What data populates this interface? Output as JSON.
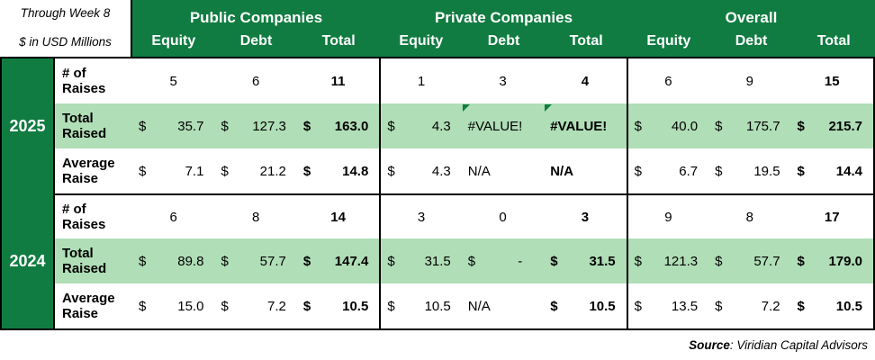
{
  "meta": {
    "through": "Through Week 8",
    "units": "$ in USD Millions"
  },
  "header": {
    "groups": [
      {
        "title": "Public Companies"
      },
      {
        "title": "Private Companies"
      },
      {
        "title": "Overall"
      }
    ],
    "cols": [
      "Equity",
      "Debt",
      "Total"
    ]
  },
  "body": {
    "years": [
      "2025",
      "2024"
    ],
    "rows": [
      {
        "label": "# of Raises",
        "cells": [
          {
            "v": "5"
          },
          {
            "v": "6"
          },
          {
            "v": "11"
          },
          {
            "v": "1"
          },
          {
            "v": "3"
          },
          {
            "v": "4"
          },
          {
            "v": "6"
          },
          {
            "v": "9"
          },
          {
            "v": "15"
          }
        ]
      },
      {
        "label": "Total Raised",
        "cells": [
          {
            "c": "$",
            "v": "35.7"
          },
          {
            "c": "$",
            "v": "127.3"
          },
          {
            "c": "$",
            "v": "163.0"
          },
          {
            "c": "$",
            "v": "4.3"
          },
          {
            "v": "#VALUE!"
          },
          {
            "v": "#VALUE!"
          },
          {
            "c": "$",
            "v": "40.0"
          },
          {
            "c": "$",
            "v": "175.7"
          },
          {
            "c": "$",
            "v": "215.7"
          }
        ]
      },
      {
        "label": "Average Raise",
        "cells": [
          {
            "c": "$",
            "v": "7.1"
          },
          {
            "c": "$",
            "v": "21.2"
          },
          {
            "c": "$",
            "v": "14.8"
          },
          {
            "c": "$",
            "v": "4.3"
          },
          {
            "v": "N/A"
          },
          {
            "v": "N/A"
          },
          {
            "c": "$",
            "v": "6.7"
          },
          {
            "c": "$",
            "v": "19.5"
          },
          {
            "c": "$",
            "v": "14.4"
          }
        ]
      },
      {
        "label": "# of Raises",
        "cells": [
          {
            "v": "6"
          },
          {
            "v": "8"
          },
          {
            "v": "14"
          },
          {
            "v": "3"
          },
          {
            "v": "0"
          },
          {
            "v": "3"
          },
          {
            "v": "9"
          },
          {
            "v": "8"
          },
          {
            "v": "17"
          }
        ]
      },
      {
        "label": "Total Raised",
        "cells": [
          {
            "c": "$",
            "v": "89.8"
          },
          {
            "c": "$",
            "v": "57.7"
          },
          {
            "c": "$",
            "v": "147.4"
          },
          {
            "c": "$",
            "v": "31.5"
          },
          {
            "c": "$",
            "v": "-"
          },
          {
            "c": "$",
            "v": "31.5"
          },
          {
            "c": "$",
            "v": "121.3"
          },
          {
            "c": "$",
            "v": "57.7"
          },
          {
            "c": "$",
            "v": "179.0"
          }
        ]
      },
      {
        "label": "Average Raise",
        "cells": [
          {
            "c": "$",
            "v": "15.0"
          },
          {
            "c": "$",
            "v": "7.2"
          },
          {
            "c": "$",
            "v": "10.5"
          },
          {
            "c": "$",
            "v": "10.5"
          },
          {
            "v": "N/A"
          },
          {
            "c": "$",
            "v": "10.5"
          },
          {
            "c": "$",
            "v": "13.5"
          },
          {
            "c": "$",
            "v": "7.2"
          },
          {
            "c": "$",
            "v": "10.5"
          }
        ]
      }
    ]
  },
  "footer": {
    "source_label": "Source",
    "source_rest": ": Viridian Capital Advisors"
  },
  "colors": {
    "dark_green": "#107C41",
    "light_green": "#B0DEB7",
    "error_flag_green": "#107C41"
  },
  "chart_data": {
    "type": "table",
    "title": "Capital raises through Week 8 ($ in USD Millions)",
    "column_groups": [
      "Public Companies",
      "Private Companies",
      "Overall"
    ],
    "columns_per_group": [
      "Equity",
      "Debt",
      "Total"
    ],
    "rows": [
      {
        "year": "2025",
        "metric": "# of Raises",
        "public": [
          5,
          6,
          11
        ],
        "private": [
          1,
          3,
          4
        ],
        "overall": [
          6,
          9,
          15
        ]
      },
      {
        "year": "2025",
        "metric": "Total Raised",
        "public": [
          35.7,
          127.3,
          163.0
        ],
        "private": [
          4.3,
          "#VALUE!",
          "#VALUE!"
        ],
        "overall": [
          40.0,
          175.7,
          215.7
        ]
      },
      {
        "year": "2025",
        "metric": "Average Raise",
        "public": [
          7.1,
          21.2,
          14.8
        ],
        "private": [
          4.3,
          "N/A",
          "N/A"
        ],
        "overall": [
          6.7,
          19.5,
          14.4
        ]
      },
      {
        "year": "2024",
        "metric": "# of Raises",
        "public": [
          6,
          8,
          14
        ],
        "private": [
          3,
          0,
          3
        ],
        "overall": [
          9,
          8,
          17
        ]
      },
      {
        "year": "2024",
        "metric": "Total Raised",
        "public": [
          89.8,
          57.7,
          147.4
        ],
        "private": [
          31.5,
          0,
          31.5
        ],
        "overall": [
          121.3,
          57.7,
          179.0
        ]
      },
      {
        "year": "2024",
        "metric": "Average Raise",
        "public": [
          15.0,
          7.2,
          10.5
        ],
        "private": [
          10.5,
          "N/A",
          10.5
        ],
        "overall": [
          13.5,
          7.2,
          10.5
        ]
      }
    ],
    "notes": "Error flags (green triangles) on 2025 Private Debt and Private Total 'Total Raised' cells showing #VALUE!"
  }
}
